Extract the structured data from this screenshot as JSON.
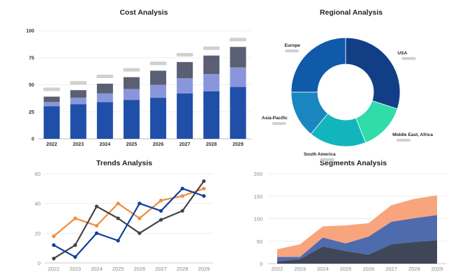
{
  "chart_data": [
    {
      "type": "bar",
      "stacked": true,
      "title": "Cost Analysis",
      "categories": [
        "2022",
        "2023",
        "2024",
        "2025",
        "2026",
        "2027",
        "2028",
        "2029"
      ],
      "ylim": [
        0,
        100
      ],
      "yticks": [
        0,
        25,
        50,
        75,
        100
      ],
      "grid": true,
      "colors": [
        "#1f4fa8",
        "#8a96db",
        "#5a5f73"
      ],
      "series": [
        {
          "values": [
            30,
            32,
            34,
            36,
            38,
            42,
            44,
            48
          ]
        },
        {
          "values": [
            4,
            6,
            8,
            10,
            12,
            14,
            16,
            18
          ]
        },
        {
          "values": [
            5,
            7,
            9,
            11,
            13,
            15,
            17,
            19
          ]
        }
      ]
    },
    {
      "type": "pie",
      "donut": true,
      "title": "Regional Analysis",
      "labels": [
        "USA",
        "Middle East, Africa",
        "South America",
        "Asia-Pacific",
        "Europe"
      ],
      "values": [
        30,
        14,
        17,
        14,
        25
      ],
      "colors": [
        "#123e86",
        "#2fdcaa",
        "#13b5bd",
        "#1a86c0",
        "#0f5aa9"
      ]
    },
    {
      "type": "line",
      "title": "Trends Analysis",
      "categories": [
        "2022",
        "2023",
        "2024",
        "2025",
        "2026",
        "2027",
        "2028",
        "2029"
      ],
      "ylim": [
        0,
        60
      ],
      "yticks": [
        0,
        20,
        40,
        60
      ],
      "grid": true,
      "series": [
        {
          "color": "#f08c3c",
          "values": [
            18,
            30,
            25,
            40,
            30,
            42,
            45,
            50
          ]
        },
        {
          "color": "#444444",
          "values": [
            3,
            12,
            38,
            30,
            20,
            29,
            35,
            55
          ]
        },
        {
          "color": "#0e3ea0",
          "values": [
            12,
            4,
            20,
            15,
            40,
            35,
            50,
            45
          ]
        }
      ]
    },
    {
      "type": "area",
      "stacked": true,
      "title": "Segments Analysis",
      "categories": [
        "2022",
        "2023",
        "2024",
        "2025",
        "2026",
        "2027",
        "2028",
        "2029"
      ],
      "ylim": [
        0,
        200
      ],
      "yticks": [
        0,
        50,
        100,
        150,
        200
      ],
      "grid": true,
      "series": [
        {
          "color": "#3f4657",
          "values": [
            5,
            10,
            38,
            28,
            20,
            43,
            48,
            52
          ]
        },
        {
          "color": "#4e6bae",
          "values": [
            10,
            5,
            20,
            17,
            40,
            50,
            53,
            56
          ]
        },
        {
          "color": "#f8a57d",
          "values": [
            17,
            28,
            25,
            40,
            30,
            37,
            43,
            44
          ]
        }
      ]
    }
  ]
}
